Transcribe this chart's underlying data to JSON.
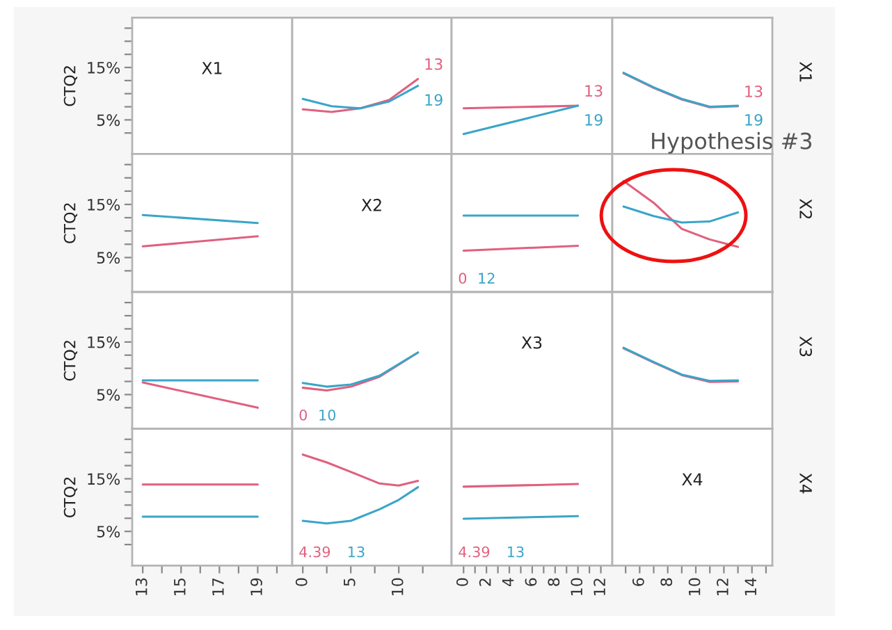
{
  "chart_data": [
    {
      "type": "line",
      "title": "X1",
      "ylabel": "CTQ2",
      "tick_labels": "y",
      "xlim": [
        12.45,
        20.8
      ],
      "ylim": [
        -1.5,
        24.5
      ],
      "yticks": [
        {
          "value": 2.5,
          "label": null
        },
        {
          "value": 5,
          "label": "5%"
        },
        {
          "value": 7.5,
          "label": null
        },
        {
          "value": 10,
          "label": null
        },
        {
          "value": 12.5,
          "label": null
        },
        {
          "value": 15,
          "label": "15%"
        },
        {
          "value": 17.5,
          "label": null
        },
        {
          "value": 20,
          "label": null
        },
        {
          "value": 22.5,
          "label": null
        }
      ]
    },
    {
      "type": "line",
      "tick_labels": false,
      "x": [
        0,
        3,
        6,
        9,
        12
      ],
      "xlim": [
        -1.1,
        15.5
      ],
      "ylim": [
        -1.5,
        24.5
      ],
      "series": [
        {
          "name": "13",
          "color": "#e0607e",
          "values": [
            7.0,
            6.5,
            7.2,
            8.8,
            12.8
          ]
        },
        {
          "name": "19",
          "color": "#3aa5c8",
          "values": [
            9.0,
            7.6,
            7.2,
            8.5,
            11.5
          ]
        }
      ]
    },
    {
      "type": "line",
      "tick_labels": false,
      "x": [
        0,
        10
      ],
      "xlim": [
        -1.05,
        13.0
      ],
      "ylim": [
        -1.5,
        24.5
      ],
      "series": [
        {
          "name": "13",
          "color": "#e0607e",
          "values": [
            7.2,
            7.7
          ]
        },
        {
          "name": "19",
          "color": "#3aa5c8",
          "values": [
            2.3,
            7.7
          ]
        }
      ]
    },
    {
      "type": "line",
      "tick_labels": false,
      "y2label": "X1",
      "x": [
        4.85,
        7,
        9,
        11,
        13
      ],
      "xlim": [
        4.05,
        15.45
      ],
      "ylim": [
        -1.5,
        24.5
      ],
      "series": [
        {
          "name": "13",
          "color": "#e0607e",
          "values": [
            13.9,
            11.1,
            8.9,
            7.4,
            7.6
          ]
        },
        {
          "name": "19",
          "color": "#3aa5c8",
          "values": [
            14.0,
            11.2,
            9.0,
            7.5,
            7.7
          ]
        }
      ]
    },
    {
      "type": "line",
      "ylabel": "CTQ2",
      "tick_labels": "y",
      "x": [
        13,
        19
      ],
      "xlim": [
        12.45,
        20.8
      ],
      "ylim": [
        -1.5,
        24.5
      ],
      "yticks": [
        {
          "value": 2.5,
          "label": null
        },
        {
          "value": 5,
          "label": "5%"
        },
        {
          "value": 7.5,
          "label": null
        },
        {
          "value": 10,
          "label": null
        },
        {
          "value": 12.5,
          "label": null
        },
        {
          "value": 15,
          "label": "15%"
        },
        {
          "value": 17.5,
          "label": null
        },
        {
          "value": 20,
          "label": null
        },
        {
          "value": 22.5,
          "label": null
        }
      ],
      "series": [
        {
          "color": "#e0607e",
          "values": [
            7.1,
            9.0
          ]
        },
        {
          "color": "#3aa5c8",
          "values": [
            13.0,
            11.5
          ]
        }
      ]
    },
    {
      "type": "line",
      "title": "X2",
      "tick_labels": false,
      "xlim": [
        -1.1,
        15.5
      ],
      "ylim": [
        -1.5,
        24.5
      ]
    },
    {
      "type": "line",
      "tick_labels": false,
      "x": [
        0,
        10
      ],
      "xlim": [
        -1.05,
        13.0
      ],
      "ylim": [
        -1.5,
        24.5
      ],
      "series": [
        {
          "name": "0",
          "color": "#e0607e",
          "values": [
            6.3,
            7.2
          ]
        },
        {
          "name": "12",
          "color": "#3aa5c8",
          "values": [
            12.9,
            12.9
          ]
        }
      ]
    },
    {
      "type": "line",
      "tick_labels": false,
      "y2label": "X2",
      "annotations": [
        "Hypothesis #3"
      ],
      "x": [
        4.85,
        7,
        9,
        11,
        13
      ],
      "xlim": [
        4.05,
        15.45
      ],
      "ylim": [
        -1.5,
        24.5
      ],
      "series": [
        {
          "color": "#e0607e",
          "values": [
            19.4,
            15.3,
            10.4,
            8.4,
            7.0
          ]
        },
        {
          "color": "#3aa5c8",
          "values": [
            14.6,
            12.8,
            11.6,
            11.8,
            13.5
          ]
        }
      ]
    },
    {
      "type": "line",
      "ylabel": "CTQ2",
      "tick_labels": "y",
      "x": [
        13,
        19
      ],
      "xlim": [
        12.45,
        20.8
      ],
      "ylim": [
        -1.5,
        24.5
      ],
      "yticks": [
        {
          "value": 2.5,
          "label": null
        },
        {
          "value": 5,
          "label": "5%"
        },
        {
          "value": 7.5,
          "label": null
        },
        {
          "value": 10,
          "label": null
        },
        {
          "value": 12.5,
          "label": null
        },
        {
          "value": 15,
          "label": "15%"
        },
        {
          "value": 17.5,
          "label": null
        },
        {
          "value": 20,
          "label": null
        },
        {
          "value": 22.5,
          "label": null
        }
      ],
      "series": [
        {
          "color": "#e0607e",
          "values": [
            7.3,
            2.5
          ]
        },
        {
          "color": "#3aa5c8",
          "values": [
            7.7,
            7.7
          ]
        }
      ]
    },
    {
      "type": "line",
      "tick_labels": false,
      "x": [
        0,
        2.5,
        5,
        8,
        12
      ],
      "xlim": [
        -1.1,
        15.5
      ],
      "ylim": [
        -1.5,
        24.5
      ],
      "series": [
        {
          "name": "0",
          "color": "#e0607e",
          "values": [
            6.3,
            5.8,
            6.5,
            8.4,
            13.0
          ]
        },
        {
          "name": "10",
          "color": "#3aa5c8",
          "values": [
            7.2,
            6.5,
            6.9,
            8.6,
            13.0
          ]
        }
      ]
    },
    {
      "type": "line",
      "title": "X3",
      "tick_labels": false,
      "xlim": [
        -1.05,
        13.0
      ],
      "ylim": [
        -1.5,
        24.5
      ]
    },
    {
      "type": "line",
      "tick_labels": false,
      "y2label": "X3",
      "x": [
        4.85,
        7,
        9,
        11,
        13
      ],
      "xlim": [
        4.05,
        15.45
      ],
      "ylim": [
        -1.5,
        24.5
      ],
      "series": [
        {
          "color": "#e0607e",
          "values": [
            13.8,
            11.1,
            8.7,
            7.4,
            7.5
          ]
        },
        {
          "color": "#3aa5c8",
          "values": [
            13.9,
            11.2,
            8.8,
            7.6,
            7.7
          ]
        }
      ]
    },
    {
      "type": "line",
      "ylabel": "CTQ2",
      "x": [
        13,
        19
      ],
      "xlim": [
        12.45,
        20.8
      ],
      "xticks": [
        13,
        {
          "value": 14,
          "label": null
        },
        15,
        {
          "value": 16,
          "label": null
        },
        17,
        {
          "value": 18,
          "label": null
        },
        19,
        {
          "value": 20,
          "label": null
        }
      ],
      "ylim": [
        -1.5,
        24.5
      ],
      "yticks": [
        {
          "value": 2.5,
          "label": null
        },
        {
          "value": 5,
          "label": "5%"
        },
        {
          "value": 7.5,
          "label": null
        },
        {
          "value": 10,
          "label": null
        },
        {
          "value": 12.5,
          "label": null
        },
        {
          "value": 15,
          "label": "15%"
        },
        {
          "value": 17.5,
          "label": null
        },
        {
          "value": 20,
          "label": null
        },
        {
          "value": 22.5,
          "label": null
        }
      ],
      "series": [
        {
          "color": "#e0607e",
          "values": [
            13.9,
            13.9
          ]
        },
        {
          "color": "#3aa5c8",
          "values": [
            7.8,
            7.8
          ]
        }
      ]
    },
    {
      "type": "line",
      "tick_labels": "x",
      "x": [
        0,
        2.5,
        5,
        8,
        10,
        12
      ],
      "xlim": [
        -1.1,
        15.5
      ],
      "xticks": [
        0,
        {
          "value": 2.5,
          "label": null
        },
        5,
        {
          "value": 7.5,
          "label": null
        },
        10,
        {
          "value": 12.5,
          "label": null
        }
      ],
      "ylim": [
        -1.5,
        24.5
      ],
      "series": [
        {
          "name": "4.39",
          "color": "#e0607e",
          "values": [
            19.6,
            18.1,
            16.3,
            14.1,
            13.7,
            14.6
          ]
        },
        {
          "name": "13",
          "color": "#3aa5c8",
          "values": [
            7.0,
            6.5,
            7.0,
            9.2,
            11.0,
            13.4
          ]
        }
      ]
    },
    {
      "type": "line",
      "tick_labels": "x",
      "x": [
        0,
        10
      ],
      "xlim": [
        -1.05,
        13.0
      ],
      "xticks": [
        0,
        {
          "value": 1,
          "label": null
        },
        2,
        {
          "value": 3,
          "label": null
        },
        4,
        {
          "value": 5,
          "label": null
        },
        6,
        {
          "value": 7,
          "label": null
        },
        8,
        {
          "value": 9,
          "label": null
        },
        10,
        {
          "value": 11,
          "label": null
        },
        12
      ],
      "ylim": [
        -1.5,
        24.5
      ],
      "series": [
        {
          "name": "4.39",
          "color": "#e0607e",
          "values": [
            13.5,
            14.0
          ]
        },
        {
          "name": "13",
          "color": "#3aa5c8",
          "values": [
            7.4,
            7.9
          ]
        }
      ]
    },
    {
      "type": "line",
      "title": "X4",
      "y2label": "X4",
      "tick_labels": "x",
      "xlim": [
        4.05,
        15.45
      ],
      "xticks": [
        {
          "value": 5,
          "label": null
        },
        6,
        {
          "value": 7,
          "label": null
        },
        8,
        {
          "value": 9,
          "label": null
        },
        10,
        {
          "value": 11,
          "label": null
        },
        12,
        {
          "value": 13,
          "label": null
        },
        14,
        {
          "value": 15,
          "label": null
        }
      ],
      "ylim": [
        -1.5,
        24.5
      ]
    }
  ]
}
